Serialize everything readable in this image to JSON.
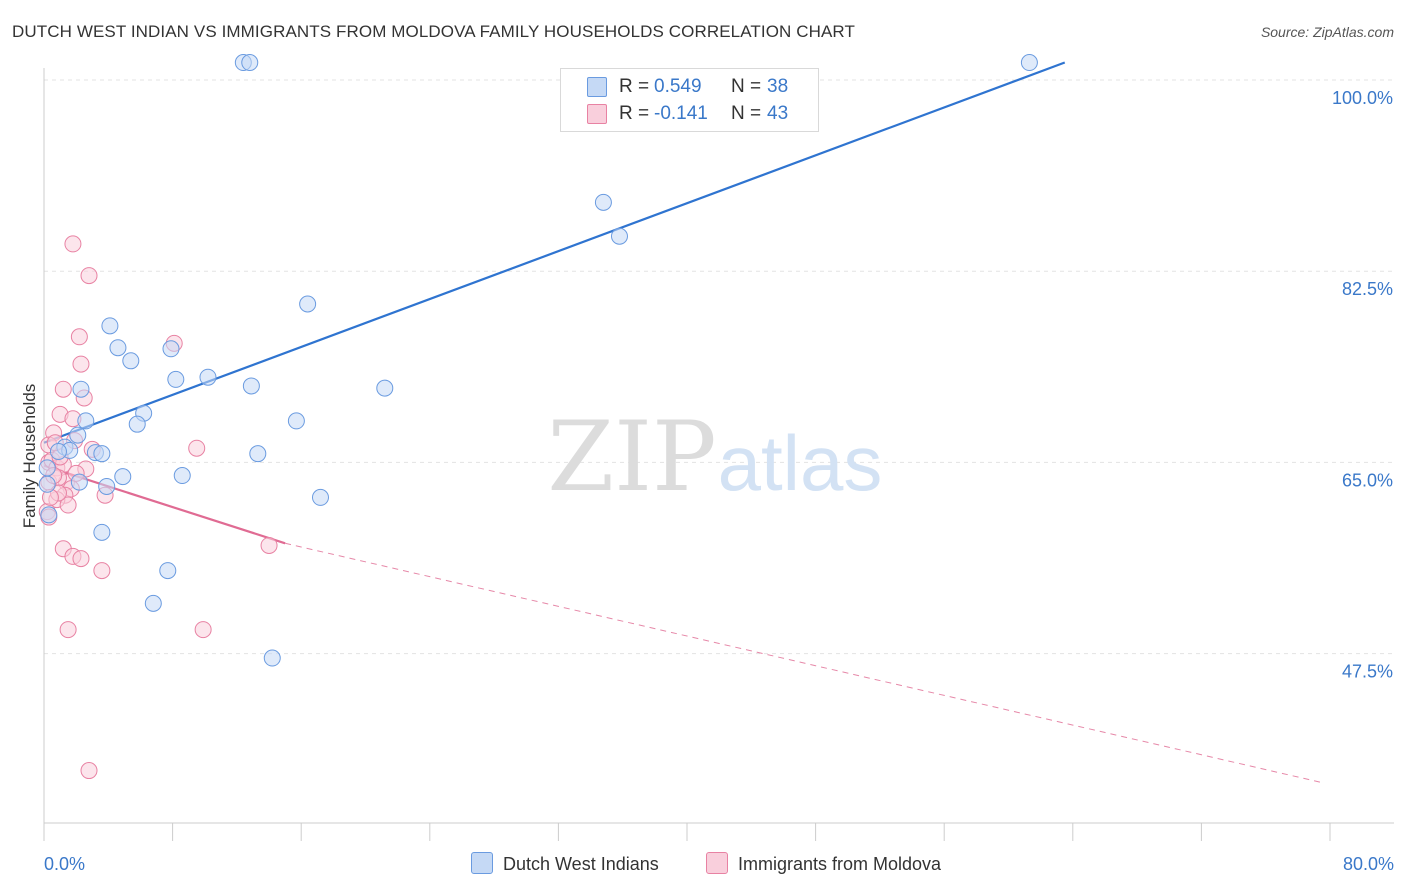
{
  "title": "DUTCH WEST INDIAN VS IMMIGRANTS FROM MOLDOVA FAMILY HOUSEHOLDS CORRELATION CHART",
  "source": "Source: ZipAtlas.com",
  "colors": {
    "blue_fill": "#c5d9f5",
    "blue_stroke": "#6a9be0",
    "blue_line": "#2f74d0",
    "pink_fill": "#f9cfdc",
    "pink_stroke": "#e882a3",
    "pink_line": "#e06b93",
    "axis_label": "#3a78c9",
    "grid": "#e3e3e3"
  },
  "legend": {
    "r_label": "R =",
    "n_label": "N =",
    "series1": {
      "r": "0.549",
      "n": "38"
    },
    "series2": {
      "r": "-0.141",
      "n": "43"
    }
  },
  "watermark": {
    "zip": "ZIP",
    "atlas": "atlas"
  },
  "chart_data": {
    "type": "scatter",
    "title": "DUTCH WEST INDIAN VS IMMIGRANTS FROM MOLDOVA FAMILY HOUSEHOLDS CORRELATION CHART",
    "xlabel": "",
    "ylabel": "Family Households",
    "xlim": [
      0,
      80
    ],
    "ylim": [
      32,
      100
    ],
    "x_tick_labels": [
      {
        "value": 0,
        "label": "0.0%"
      },
      {
        "value": 80,
        "label": "80.0%"
      }
    ],
    "y_tick_labels": [
      {
        "value": 100,
        "label": "100.0%"
      },
      {
        "value": 82.5,
        "label": "82.5%"
      },
      {
        "value": 65,
        "label": "65.0%"
      },
      {
        "value": 47.5,
        "label": "47.5%"
      }
    ],
    "series": [
      {
        "name": "Dutch West Indians",
        "color": "#6a9be0",
        "R": 0.549,
        "N": 38,
        "trend": {
          "x": [
            0,
            63.5
          ],
          "y": [
            66.8,
            101.6
          ],
          "dashed_extension": false
        },
        "points": [
          [
            12.4,
            101.6
          ],
          [
            12.8,
            101.6
          ],
          [
            61.3,
            101.6
          ],
          [
            34.8,
            88.8
          ],
          [
            35.8,
            85.7
          ],
          [
            16.4,
            79.5
          ],
          [
            4.1,
            77.5
          ],
          [
            4.6,
            75.5
          ],
          [
            7.9,
            75.4
          ],
          [
            5.4,
            74.3
          ],
          [
            8.2,
            72.6
          ],
          [
            10.2,
            72.8
          ],
          [
            12.9,
            72.0
          ],
          [
            2.3,
            71.7
          ],
          [
            21.2,
            71.8
          ],
          [
            6.2,
            69.5
          ],
          [
            2.6,
            68.8
          ],
          [
            15.7,
            68.8
          ],
          [
            5.8,
            68.5
          ],
          [
            2.1,
            67.5
          ],
          [
            1.3,
            66.4
          ],
          [
            1.6,
            66.1
          ],
          [
            0.9,
            66.0
          ],
          [
            3.2,
            65.9
          ],
          [
            3.6,
            65.8
          ],
          [
            13.3,
            65.8
          ],
          [
            4.9,
            63.7
          ],
          [
            8.6,
            63.8
          ],
          [
            2.2,
            63.2
          ],
          [
            3.9,
            62.8
          ],
          [
            17.2,
            61.8
          ],
          [
            3.6,
            58.6
          ],
          [
            7.7,
            55.1
          ],
          [
            6.8,
            52.1
          ],
          [
            14.2,
            47.1
          ],
          [
            0.2,
            64.5
          ],
          [
            0.2,
            63.0
          ],
          [
            0.3,
            60.2
          ]
        ]
      },
      {
        "name": "Immigrants from Moldova",
        "color": "#e882a3",
        "R": -0.141,
        "N": 43,
        "trend": {
          "x": [
            0,
            15.0
          ],
          "y": [
            64.7,
            57.6
          ],
          "dashed_extension": true,
          "dash_to": [
            79.5,
            35.7
          ]
        },
        "points": [
          [
            1.8,
            85.0
          ],
          [
            2.8,
            82.1
          ],
          [
            2.2,
            76.5
          ],
          [
            8.1,
            75.9
          ],
          [
            2.3,
            74.0
          ],
          [
            1.2,
            71.7
          ],
          [
            2.5,
            70.9
          ],
          [
            1.0,
            69.4
          ],
          [
            1.8,
            69.0
          ],
          [
            0.6,
            67.7
          ],
          [
            1.9,
            67.0
          ],
          [
            0.3,
            66.6
          ],
          [
            9.5,
            66.3
          ],
          [
            3.0,
            66.2
          ],
          [
            0.3,
            65.0
          ],
          [
            0.5,
            65.2
          ],
          [
            0.8,
            64.5
          ],
          [
            0.3,
            63.2
          ],
          [
            1.2,
            64.8
          ],
          [
            2.6,
            64.4
          ],
          [
            1.4,
            63.2
          ],
          [
            0.9,
            63.6
          ],
          [
            1.7,
            62.6
          ],
          [
            1.3,
            62.0
          ],
          [
            0.8,
            61.6
          ],
          [
            1.5,
            61.1
          ],
          [
            3.8,
            62.0
          ],
          [
            0.2,
            60.5
          ],
          [
            0.3,
            60.0
          ],
          [
            14.0,
            57.4
          ],
          [
            1.2,
            57.1
          ],
          [
            1.8,
            56.4
          ],
          [
            2.3,
            56.2
          ],
          [
            3.6,
            55.1
          ],
          [
            0.9,
            62.2
          ],
          [
            0.6,
            63.8
          ],
          [
            1.5,
            49.7
          ],
          [
            9.9,
            49.7
          ],
          [
            2.8,
            36.8
          ],
          [
            0.4,
            61.8
          ],
          [
            1.0,
            65.5
          ],
          [
            2.0,
            64.0
          ],
          [
            0.7,
            66.8
          ]
        ]
      }
    ],
    "legend_position": "top-center",
    "grid": true
  }
}
